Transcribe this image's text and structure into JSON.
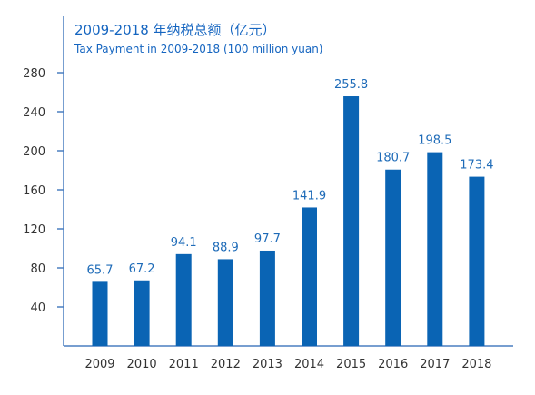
{
  "chart_data": {
    "type": "bar",
    "title": "2009-2018 年纳税总额（亿元）",
    "subtitle": "Tax Payment in 2009-2018 (100 million yuan)",
    "xlabel": "",
    "ylabel": "",
    "categories": [
      "2009",
      "2010",
      "2011",
      "2012",
      "2013",
      "2014",
      "2015",
      "2016",
      "2017",
      "2018"
    ],
    "values": [
      65.7,
      67.2,
      94.1,
      88.9,
      97.7,
      141.9,
      255.8,
      180.7,
      198.5,
      173.4
    ],
    "data_labels": [
      "65.7",
      "67.2",
      "94.1",
      "88.9",
      "97.7",
      "141.9",
      "255.8",
      "180.7",
      "198.5",
      "173.4"
    ],
    "ylim": [
      0,
      280
    ],
    "yticks": [
      40,
      80,
      120,
      160,
      200,
      240,
      280
    ],
    "grid": false,
    "colors": {
      "bar": "#0a64b4",
      "label": "#1e6bb8",
      "title": "#1565c0",
      "axis": "#4a7fc1",
      "ticktext": "#333333"
    }
  }
}
